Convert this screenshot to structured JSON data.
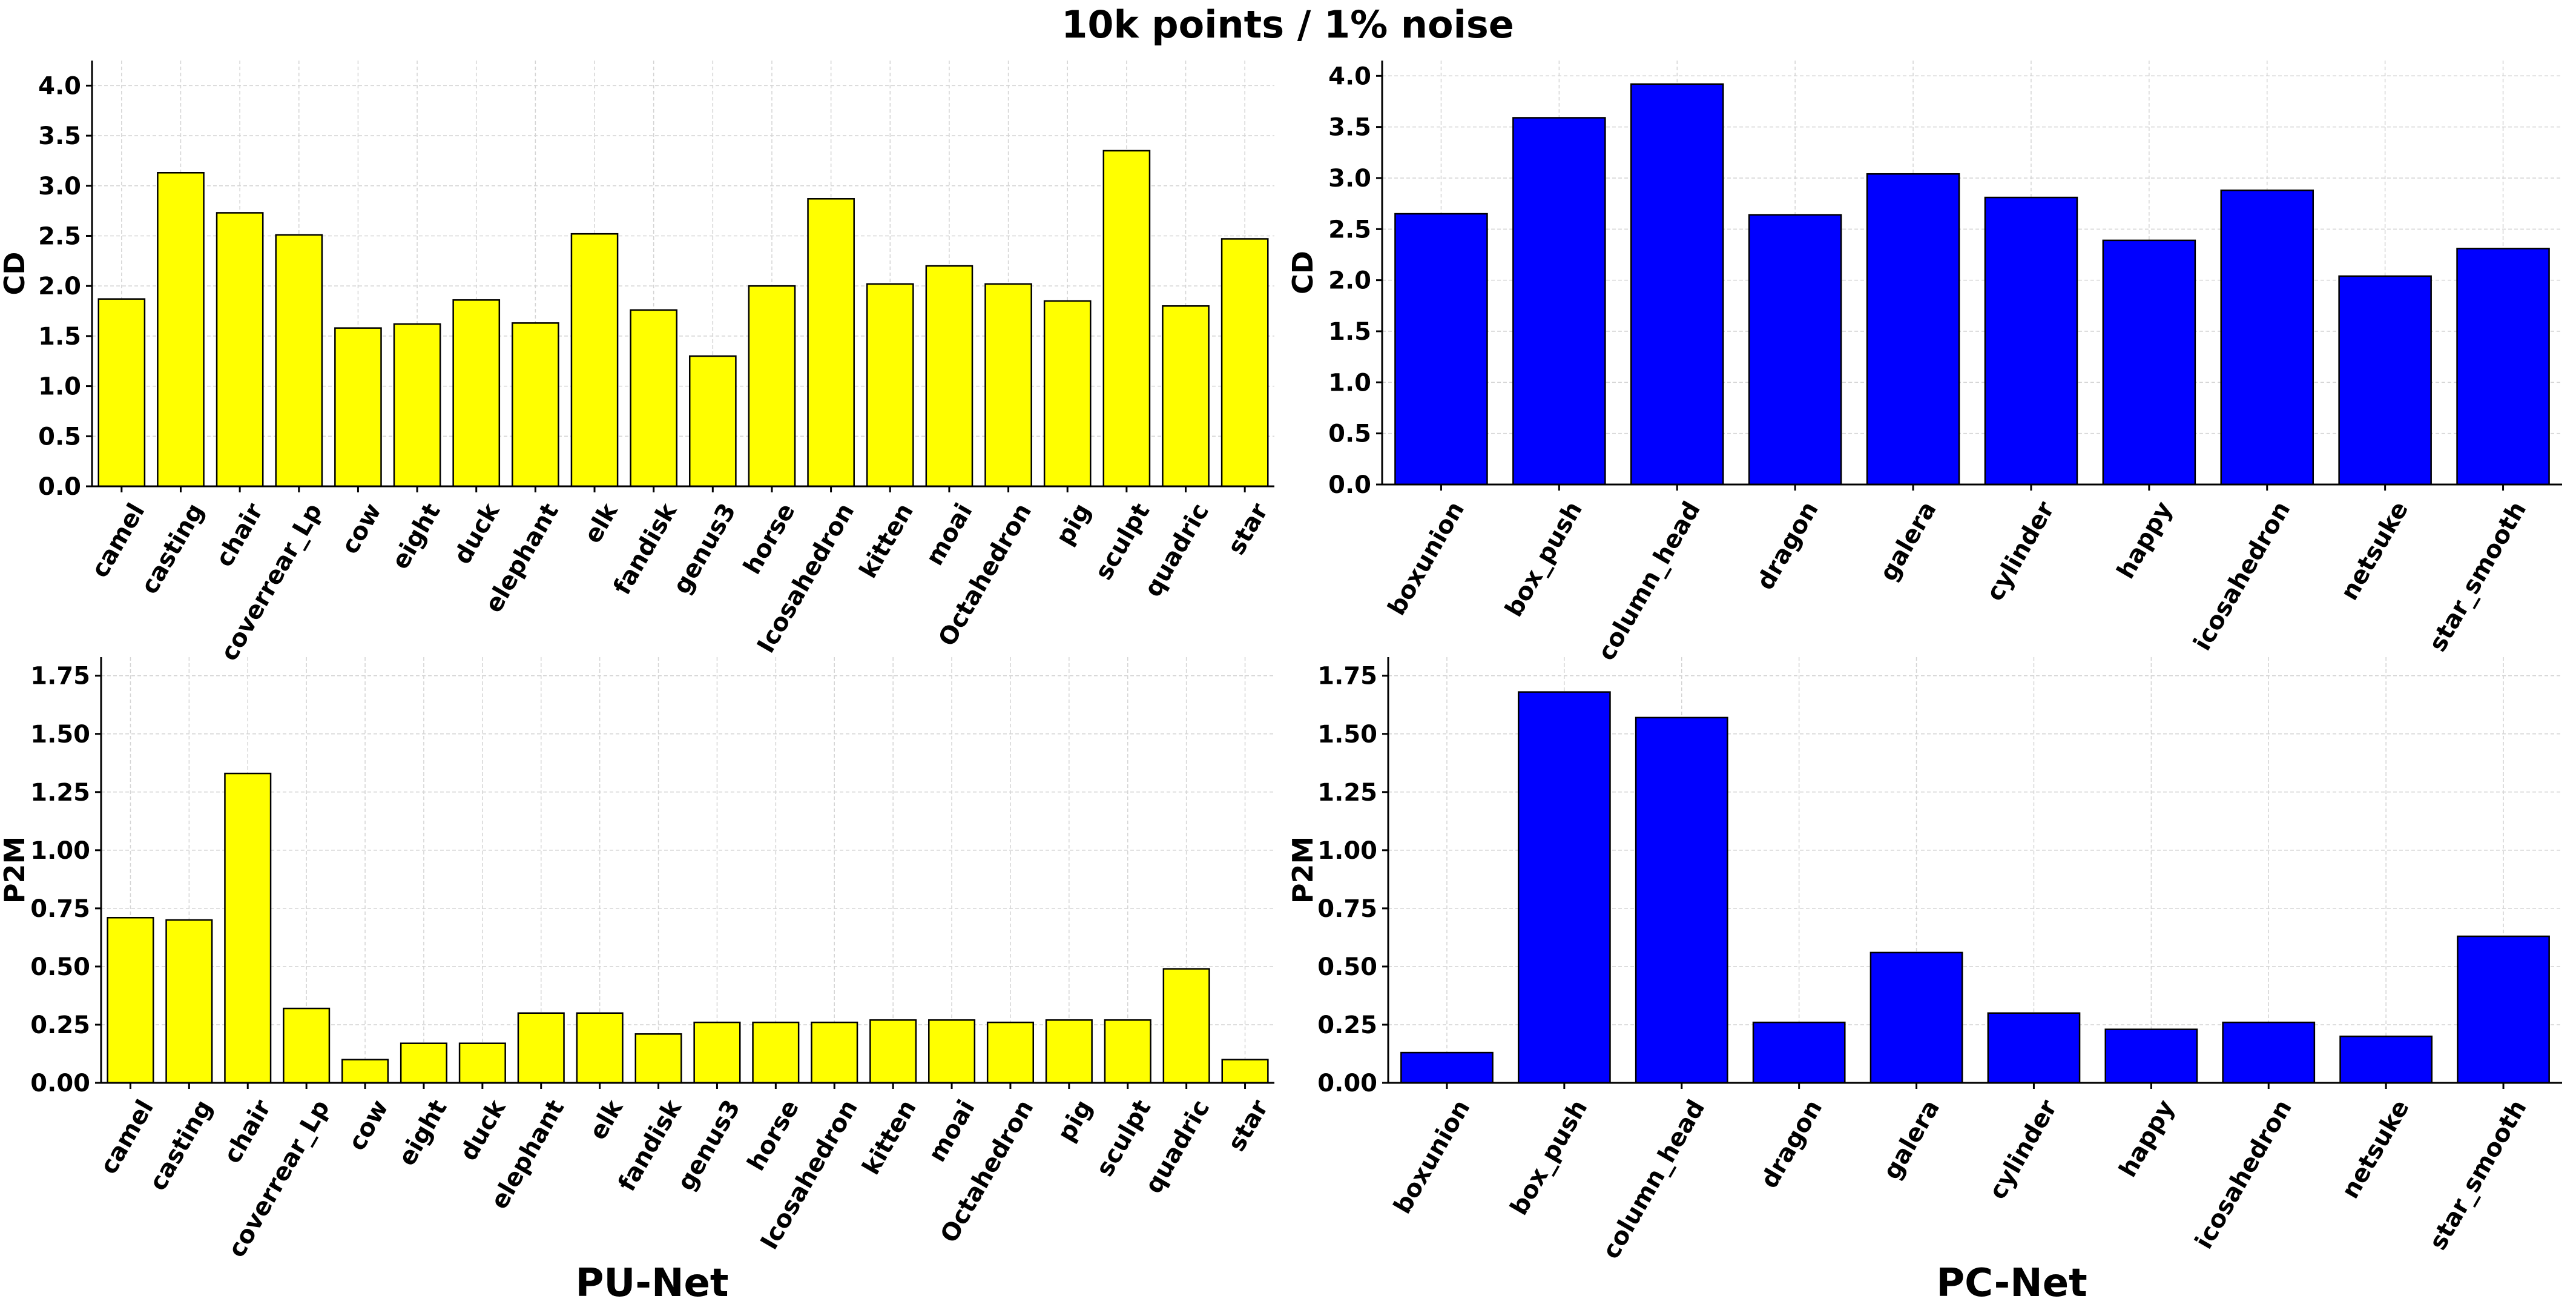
{
  "title": "10k points / 1% noise",
  "column_titles": [
    "PU-Net",
    "PC-Net"
  ],
  "colors": {
    "pu_bar": "#ffff00",
    "pc_bar": "#0000ff",
    "edge": "#000000",
    "grid": "#d4d4d4"
  },
  "chart_data": [
    {
      "id": "pu-cd",
      "type": "bar",
      "method": "PU-Net",
      "ylabel": "CD",
      "ylim": [
        0,
        4.25
      ],
      "yticks": [
        0.0,
        0.5,
        1.0,
        1.5,
        2.0,
        2.5,
        3.0,
        3.5,
        4.0
      ],
      "tick_decimals": 1,
      "color": "#ffff00",
      "categories": [
        "camel",
        "casting",
        "chair",
        "coverrear_Lp",
        "cow",
        "eight",
        "duck",
        "elephant",
        "elk",
        "fandisk",
        "genus3",
        "horse",
        "Icosahedron",
        "kitten",
        "moai",
        "Octahedron",
        "pig",
        "sculpt",
        "quadric",
        "star"
      ],
      "values": [
        1.87,
        3.13,
        2.73,
        2.51,
        1.58,
        1.62,
        1.86,
        1.63,
        2.52,
        1.76,
        1.3,
        2.0,
        2.87,
        2.02,
        2.2,
        2.02,
        1.85,
        3.35,
        1.8,
        2.47
      ]
    },
    {
      "id": "pc-cd",
      "type": "bar",
      "method": "PC-Net",
      "ylabel": "CD",
      "ylim": [
        0,
        4.15
      ],
      "yticks": [
        0.0,
        0.5,
        1.0,
        1.5,
        2.0,
        2.5,
        3.0,
        3.5,
        4.0
      ],
      "tick_decimals": 1,
      "color": "#0000ff",
      "categories": [
        "boxunion",
        "box_push",
        "column_head",
        "dragon",
        "galera",
        "cylinder",
        "happy",
        "icosahedron",
        "netsuke",
        "star_smooth"
      ],
      "values": [
        2.65,
        3.59,
        3.92,
        2.64,
        3.04,
        2.81,
        2.39,
        2.88,
        2.04,
        2.31
      ]
    },
    {
      "id": "pu-p2m",
      "type": "bar",
      "method": "PU-Net",
      "ylabel": "P2M",
      "ylim": [
        0,
        1.83
      ],
      "yticks": [
        0.0,
        0.25,
        0.5,
        0.75,
        1.0,
        1.25,
        1.5,
        1.75
      ],
      "tick_decimals": 2,
      "color": "#ffff00",
      "categories": [
        "camel",
        "casting",
        "chair",
        "coverrear_Lp",
        "cow",
        "eight",
        "duck",
        "elephant",
        "elk",
        "fandisk",
        "genus3",
        "horse",
        "Icosahedron",
        "kitten",
        "moai",
        "Octahedron",
        "pig",
        "sculpt",
        "quadric",
        "star"
      ],
      "values": [
        0.71,
        0.7,
        1.33,
        0.32,
        0.1,
        0.17,
        0.17,
        0.3,
        0.3,
        0.21,
        0.26,
        0.26,
        0.26,
        0.27,
        0.27,
        0.26,
        0.27,
        0.27,
        0.49,
        0.1
      ]
    },
    {
      "id": "pc-p2m",
      "type": "bar",
      "method": "PC-Net",
      "ylabel": "P2M",
      "ylim": [
        0,
        1.83
      ],
      "yticks": [
        0.0,
        0.25,
        0.5,
        0.75,
        1.0,
        1.25,
        1.5,
        1.75
      ],
      "tick_decimals": 2,
      "color": "#0000ff",
      "categories": [
        "boxunion",
        "box_push",
        "column_head",
        "dragon",
        "galera",
        "cylinder",
        "happy",
        "icosahedron",
        "netsuke",
        "star_smooth"
      ],
      "values": [
        0.13,
        1.68,
        1.57,
        0.26,
        0.56,
        0.3,
        0.23,
        0.26,
        0.2,
        0.63
      ]
    }
  ]
}
